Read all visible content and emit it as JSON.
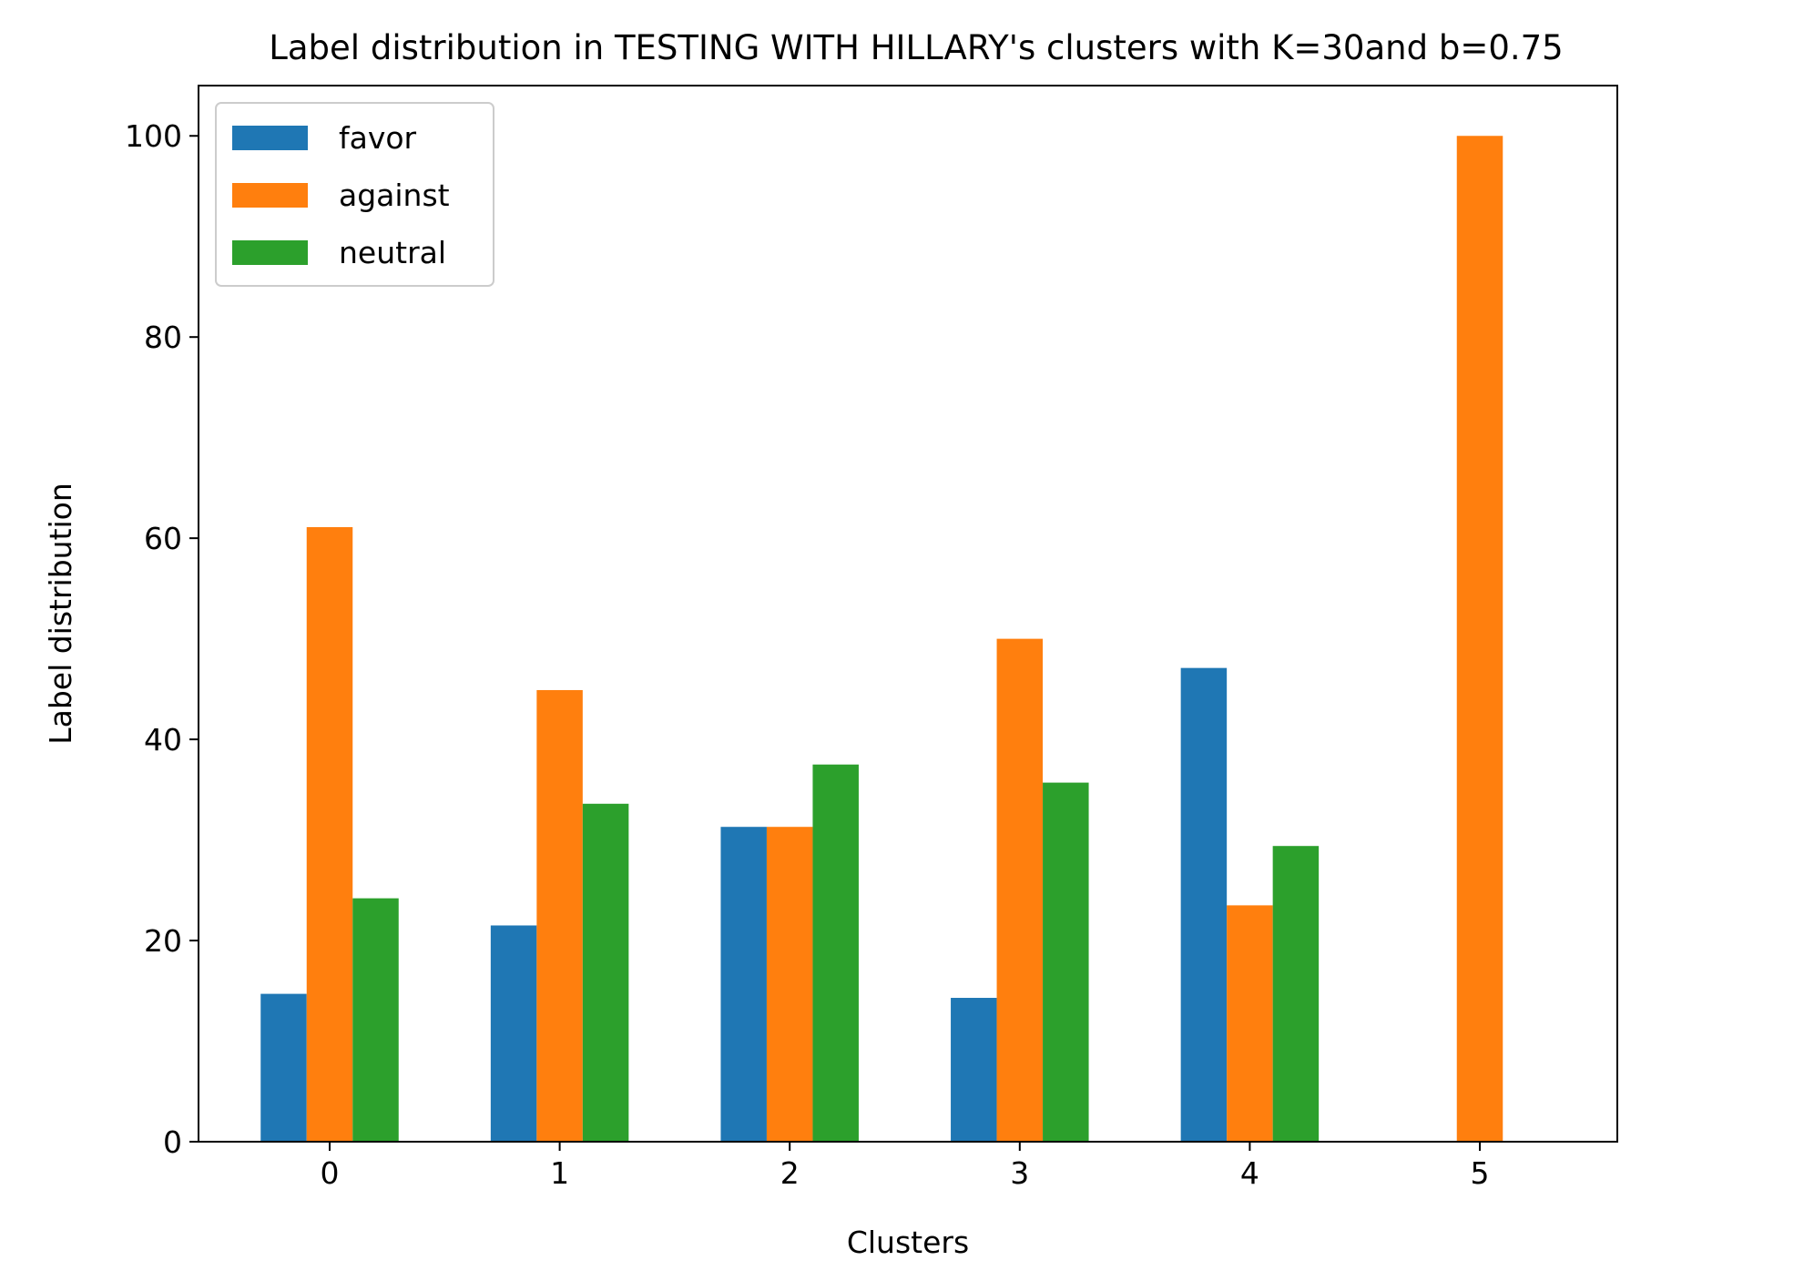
{
  "chart_data": {
    "type": "bar",
    "title": "Label distribution in TESTING WITH HILLARY's clusters with K=30and b=0.75",
    "xlabel": "Clusters",
    "ylabel": "Label distribution",
    "categories": [
      "0",
      "1",
      "2",
      "3",
      "4",
      "5"
    ],
    "series": [
      {
        "name": "favor",
        "color": "#1f77b4",
        "values": [
          14.7,
          21.5,
          31.3,
          14.3,
          47.1,
          0
        ]
      },
      {
        "name": "against",
        "color": "#ff7f0e",
        "values": [
          61.1,
          44.9,
          31.3,
          50.0,
          23.5,
          100
        ]
      },
      {
        "name": "neutral",
        "color": "#2ca02c",
        "values": [
          24.2,
          33.6,
          37.5,
          35.7,
          29.4,
          0
        ]
      }
    ],
    "ylim": [
      0,
      105
    ],
    "yticks": [
      0,
      20,
      40,
      60,
      80,
      100
    ],
    "grid": false,
    "legend_position": "top-left"
  }
}
